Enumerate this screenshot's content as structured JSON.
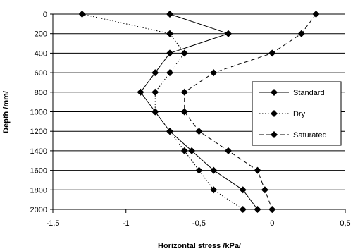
{
  "chart_data": {
    "type": "line",
    "xlabel": "Horizontal stress /kPa/",
    "ylabel": "Depth /mm/",
    "xlim": [
      -1.5,
      0.5
    ],
    "ylim": [
      0,
      2000
    ],
    "y_inverted": true,
    "x_ticks": [
      -1.5,
      -1,
      -0.5,
      0,
      0.5
    ],
    "x_tick_labels": [
      "-1,5",
      "-1",
      "-0,5",
      "0",
      "0,5"
    ],
    "y_ticks": [
      0,
      200,
      400,
      600,
      800,
      1000,
      1200,
      1400,
      1600,
      1800,
      2000
    ],
    "y_tick_labels": [
      "0",
      "200",
      "400",
      "600",
      "800",
      "1000",
      "1200",
      "1400",
      "1600",
      "1800",
      "2000"
    ],
    "grid": "horizontal",
    "legend_position": "right",
    "series": [
      {
        "name": "Standard",
        "style": "solid",
        "points": [
          {
            "x": -0.7,
            "y": 0
          },
          {
            "x": -0.3,
            "y": 200
          },
          {
            "x": -0.7,
            "y": 400
          },
          {
            "x": -0.8,
            "y": 600
          },
          {
            "x": -0.9,
            "y": 800
          },
          {
            "x": -0.8,
            "y": 1000
          },
          {
            "x": -0.7,
            "y": 1200
          },
          {
            "x": -0.55,
            "y": 1400
          },
          {
            "x": -0.4,
            "y": 1600
          },
          {
            "x": -0.2,
            "y": 1800
          },
          {
            "x": -0.1,
            "y": 2000
          }
        ]
      },
      {
        "name": "Dry",
        "style": "dotted",
        "points": [
          {
            "x": -1.3,
            "y": 0
          },
          {
            "x": -0.7,
            "y": 200
          },
          {
            "x": -0.6,
            "y": 400
          },
          {
            "x": -0.7,
            "y": 600
          },
          {
            "x": -0.8,
            "y": 800
          },
          {
            "x": -0.8,
            "y": 1000
          },
          {
            "x": -0.7,
            "y": 1200
          },
          {
            "x": -0.6,
            "y": 1400
          },
          {
            "x": -0.5,
            "y": 1600
          },
          {
            "x": -0.4,
            "y": 1800
          },
          {
            "x": -0.2,
            "y": 2000
          }
        ]
      },
      {
        "name": "Saturated",
        "style": "dashed",
        "points": [
          {
            "x": 0.3,
            "y": 0
          },
          {
            "x": 0.2,
            "y": 200
          },
          {
            "x": 0.0,
            "y": 400
          },
          {
            "x": -0.4,
            "y": 600
          },
          {
            "x": -0.6,
            "y": 800
          },
          {
            "x": -0.6,
            "y": 1000
          },
          {
            "x": -0.5,
            "y": 1200
          },
          {
            "x": -0.3,
            "y": 1400
          },
          {
            "x": -0.1,
            "y": 1600
          },
          {
            "x": -0.05,
            "y": 1800
          },
          {
            "x": 0.0,
            "y": 2000
          }
        ]
      }
    ]
  }
}
